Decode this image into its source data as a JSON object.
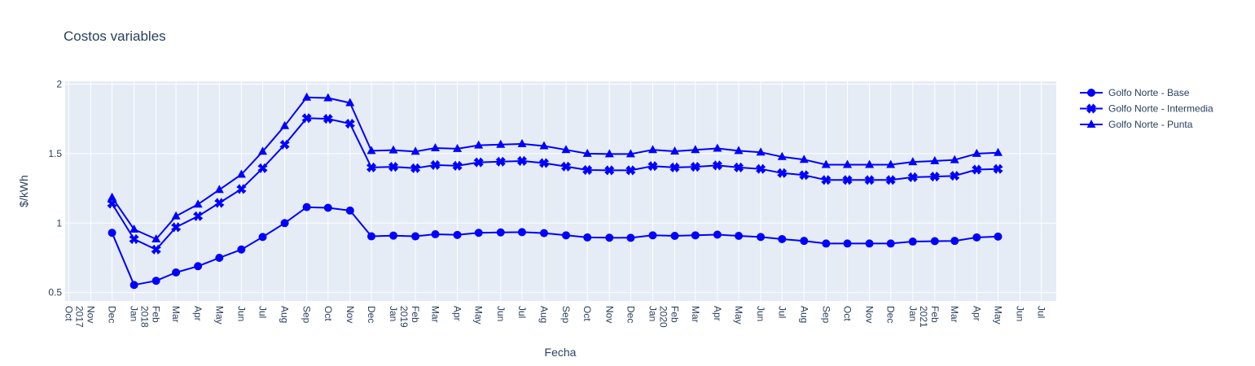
{
  "chart_data": {
    "type": "line",
    "title": "Costos variables",
    "xlabel": "Fecha",
    "ylabel": "$/kWh",
    "yticks": [
      "0.5",
      "1",
      "1.5",
      "2"
    ],
    "ylim": [
      0.44,
      2.02
    ],
    "xlim": [
      "2017-09-26",
      "2021-07-22"
    ],
    "grid": true,
    "legend_position": "top-right",
    "x": [
      "2017-12",
      "2018-01",
      "2018-02",
      "2018-03",
      "2018-04",
      "2018-05",
      "2018-06",
      "2018-07",
      "2018-08",
      "2018-09",
      "2018-10",
      "2018-11",
      "2018-12",
      "2019-01",
      "2019-02",
      "2019-03",
      "2019-04",
      "2019-05",
      "2019-06",
      "2019-07",
      "2019-08",
      "2019-09",
      "2019-10",
      "2019-11",
      "2019-12",
      "2020-01",
      "2020-02",
      "2020-03",
      "2020-04",
      "2020-05",
      "2020-06",
      "2020-07",
      "2020-08",
      "2020-09",
      "2020-10",
      "2020-11",
      "2020-12",
      "2021-01",
      "2021-02",
      "2021-03",
      "2021-04",
      "2021-05"
    ],
    "x_tick_labels": [
      "Oct",
      "Nov",
      "Dec",
      "Jan",
      "Feb",
      "Mar",
      "Apr",
      "May",
      "Jun",
      "Jul",
      "Aug",
      "Sep",
      "Oct",
      "Nov",
      "Dec",
      "Jan",
      "Feb",
      "Mar",
      "Apr",
      "May",
      "Jun",
      "Jul",
      "Aug",
      "Sep",
      "Oct",
      "Nov",
      "Dec",
      "Jan",
      "Feb",
      "Mar",
      "Apr",
      "May",
      "Jun",
      "Jul",
      "Aug",
      "Sep",
      "Oct",
      "Nov",
      "Dec",
      "Jan",
      "Feb",
      "Mar",
      "Apr",
      "May",
      "Jun",
      "Jul"
    ],
    "x_tick_dates": [
      "2017-10",
      "2017-11",
      "2017-12",
      "2018-01",
      "2018-02",
      "2018-03",
      "2018-04",
      "2018-05",
      "2018-06",
      "2018-07",
      "2018-08",
      "2018-09",
      "2018-10",
      "2018-11",
      "2018-12",
      "2019-01",
      "2019-02",
      "2019-03",
      "2019-04",
      "2019-05",
      "2019-06",
      "2019-07",
      "2019-08",
      "2019-09",
      "2019-10",
      "2019-11",
      "2019-12",
      "2020-01",
      "2020-02",
      "2020-03",
      "2020-04",
      "2020-05",
      "2020-06",
      "2020-07",
      "2020-08",
      "2020-09",
      "2020-10",
      "2020-11",
      "2020-12",
      "2021-01",
      "2021-02",
      "2021-03",
      "2021-04",
      "2021-05",
      "2021-06",
      "2021-07"
    ],
    "x_year_labels": [
      {
        "date": "2017-10",
        "label": "2017"
      },
      {
        "date": "2018-01",
        "label": "2018"
      },
      {
        "date": "2019-01",
        "label": "2019"
      },
      {
        "date": "2020-01",
        "label": "2020"
      },
      {
        "date": "2021-01",
        "label": "2021"
      }
    ],
    "series": [
      {
        "name": "Golfo Norte - Base",
        "marker": "circle",
        "color": "#0000ff",
        "values": [
          0.93,
          0.555,
          0.585,
          0.645,
          0.69,
          0.75,
          0.81,
          0.9,
          1.0,
          1.115,
          1.11,
          1.09,
          0.905,
          0.91,
          0.905,
          0.92,
          0.915,
          0.93,
          0.933,
          0.935,
          0.928,
          0.912,
          0.897,
          0.895,
          0.894,
          0.912,
          0.908,
          0.912,
          0.917,
          0.908,
          0.9,
          0.885,
          0.872,
          0.853,
          0.853,
          0.853,
          0.853,
          0.867,
          0.87,
          0.872,
          0.897,
          0.903
        ]
      },
      {
        "name": "Golfo Norte - Intermedia",
        "marker": "x",
        "color": "#0000ff",
        "values": [
          1.14,
          0.885,
          0.81,
          0.97,
          1.05,
          1.145,
          1.245,
          1.395,
          1.565,
          1.755,
          1.75,
          1.715,
          1.4,
          1.405,
          1.395,
          1.418,
          1.412,
          1.437,
          1.442,
          1.447,
          1.432,
          1.407,
          1.382,
          1.38,
          1.38,
          1.41,
          1.4,
          1.405,
          1.415,
          1.4,
          1.39,
          1.36,
          1.345,
          1.31,
          1.31,
          1.31,
          1.31,
          1.33,
          1.335,
          1.34,
          1.385,
          1.39
        ]
      },
      {
        "name": "Golfo Norte - Punta",
        "marker": "triangle-up",
        "color": "#0000ff",
        "values": [
          1.185,
          0.955,
          0.885,
          1.05,
          1.135,
          1.24,
          1.35,
          1.515,
          1.7,
          1.905,
          1.9,
          1.865,
          1.52,
          1.525,
          1.515,
          1.54,
          1.535,
          1.56,
          1.565,
          1.57,
          1.555,
          1.527,
          1.5,
          1.497,
          1.497,
          1.527,
          1.517,
          1.527,
          1.537,
          1.52,
          1.51,
          1.477,
          1.457,
          1.42,
          1.42,
          1.42,
          1.42,
          1.44,
          1.447,
          1.455,
          1.5,
          1.507
        ]
      }
    ]
  },
  "colors": {
    "plot_background": "#e5ecf6",
    "grid": "#ffffff",
    "text": "#2a3f5f",
    "line": "#0000ff"
  }
}
